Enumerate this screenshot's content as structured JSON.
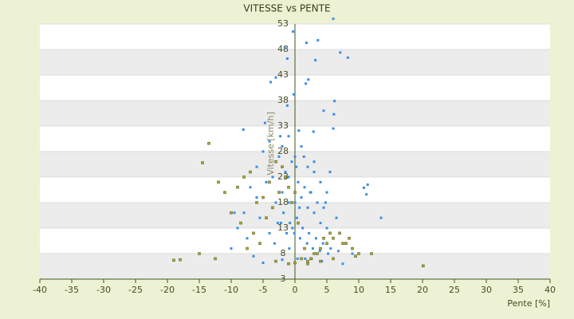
{
  "chart_data": {
    "type": "scatter",
    "title": "VITESSE vs PENTE",
    "x_label": "Pente [%]",
    "y_label": "Vitesse [km/h]",
    "xlim": [
      -40,
      40
    ],
    "xticks": [
      -40,
      -35,
      -30,
      -25,
      -20,
      -15,
      -10,
      -5,
      0,
      5,
      10,
      15,
      20,
      25,
      30,
      35,
      40
    ],
    "ylim": [
      3,
      53
    ],
    "yticks": [
      3,
      8,
      13,
      18,
      23,
      28,
      33,
      38,
      43,
      48,
      53
    ],
    "grid": true,
    "series": [
      {
        "color": "#3a8ee0",
        "x": [
          6,
          -0.3,
          1.8,
          3.6,
          7.1,
          8.3,
          -1.6,
          3.2,
          -1.2,
          2.1,
          1.7,
          -3,
          -3.8,
          -0.2,
          6.2,
          6.1,
          4.5,
          -1.2,
          -4.7,
          -8.1,
          -2.3,
          0.6,
          2.9,
          6,
          -5,
          -4,
          -3,
          -2,
          -1,
          0,
          1,
          2,
          3,
          4,
          5,
          -6,
          -3.5,
          -2.5,
          -1.5,
          -0.5,
          0.5,
          1.5,
          2.5,
          3.5,
          4.5,
          6.5,
          -7,
          -6,
          -4.5,
          -2,
          -1,
          0,
          1,
          2,
          3,
          4,
          5,
          7,
          -8,
          -5.5,
          -3,
          -1.8,
          -0.8,
          0.3,
          1.2,
          2.2,
          3.3,
          4.4,
          5.6,
          8,
          11.4,
          10.8,
          11.2,
          13.5,
          -9,
          -7.5,
          -4,
          -2.7,
          -1.3,
          -0.4,
          0.8,
          1.9,
          2.8,
          3.9,
          5.2,
          6.8,
          9,
          -10,
          -6.5,
          -3.2,
          -0.9,
          0.4,
          1.6,
          2.6,
          4.2,
          7.5,
          -5,
          -2,
          0.2,
          1.4,
          3,
          5.5,
          -4,
          -1,
          0.7,
          2.4,
          4.8,
          -9.5,
          -2.2,
          -0.1
        ],
        "values": [
          54,
          51.5,
          49.3,
          49.8,
          47.4,
          46.4,
          48.3,
          45.9,
          46.2,
          42.1,
          41.3,
          42.5,
          41.6,
          39.2,
          37.9,
          35.3,
          36,
          37,
          33.6,
          32.3,
          31,
          32.1,
          31.9,
          32.5,
          28,
          30,
          26,
          29,
          31,
          27,
          29,
          25,
          24,
          22,
          20,
          25,
          23,
          27,
          24,
          26,
          22,
          21,
          20,
          18,
          17,
          15,
          21,
          19,
          22,
          20,
          23,
          18,
          19,
          17,
          16,
          14,
          13,
          12,
          16,
          15,
          18,
          16,
          14,
          15,
          13,
          12,
          11,
          10,
          9,
          10,
          21.5,
          20.9,
          19.6,
          15,
          13,
          11,
          12,
          14,
          12,
          13,
          11,
          10,
          9,
          8.5,
          8,
          8.5,
          8,
          9,
          7.5,
          10,
          9,
          7,
          7,
          7,
          6.5,
          6,
          6.2,
          6.8,
          25,
          27,
          26,
          24,
          22,
          18,
          17,
          20,
          18,
          16,
          14,
          12
        ]
      },
      {
        "color": "#a8a832",
        "x": [
          -19,
          -18,
          20.1,
          -13.5,
          -14.5,
          -12,
          -11,
          -9,
          -8,
          -7,
          -6,
          -5,
          -4,
          -3,
          -2,
          -1,
          0,
          1,
          2,
          3,
          4,
          5,
          6,
          7,
          8,
          9,
          10,
          -10,
          -8.5,
          -6.5,
          -5.5,
          -4.5,
          -3.5,
          -2.5,
          -1.5,
          -0.5,
          0.5,
          1.5,
          2.5,
          3.5,
          4.5,
          5.5,
          7.5,
          8.5,
          -15,
          -12.5,
          -7.5,
          -3,
          -1,
          0,
          2,
          4,
          6,
          9.5,
          12
        ],
        "values": [
          6.7,
          6.8,
          5.6,
          29.6,
          25.8,
          22,
          20,
          21,
          23,
          24,
          18,
          19,
          22,
          26,
          25,
          21,
          20,
          7,
          6.5,
          8,
          9,
          10,
          11,
          12,
          10,
          9,
          8,
          16,
          14,
          12,
          10,
          15,
          17,
          20,
          23,
          18,
          14,
          9,
          7,
          8,
          11,
          12,
          10,
          11,
          8,
          7,
          9,
          6.5,
          6,
          6.2,
          6,
          6.5,
          7,
          7.5,
          8
        ]
      }
    ]
  }
}
